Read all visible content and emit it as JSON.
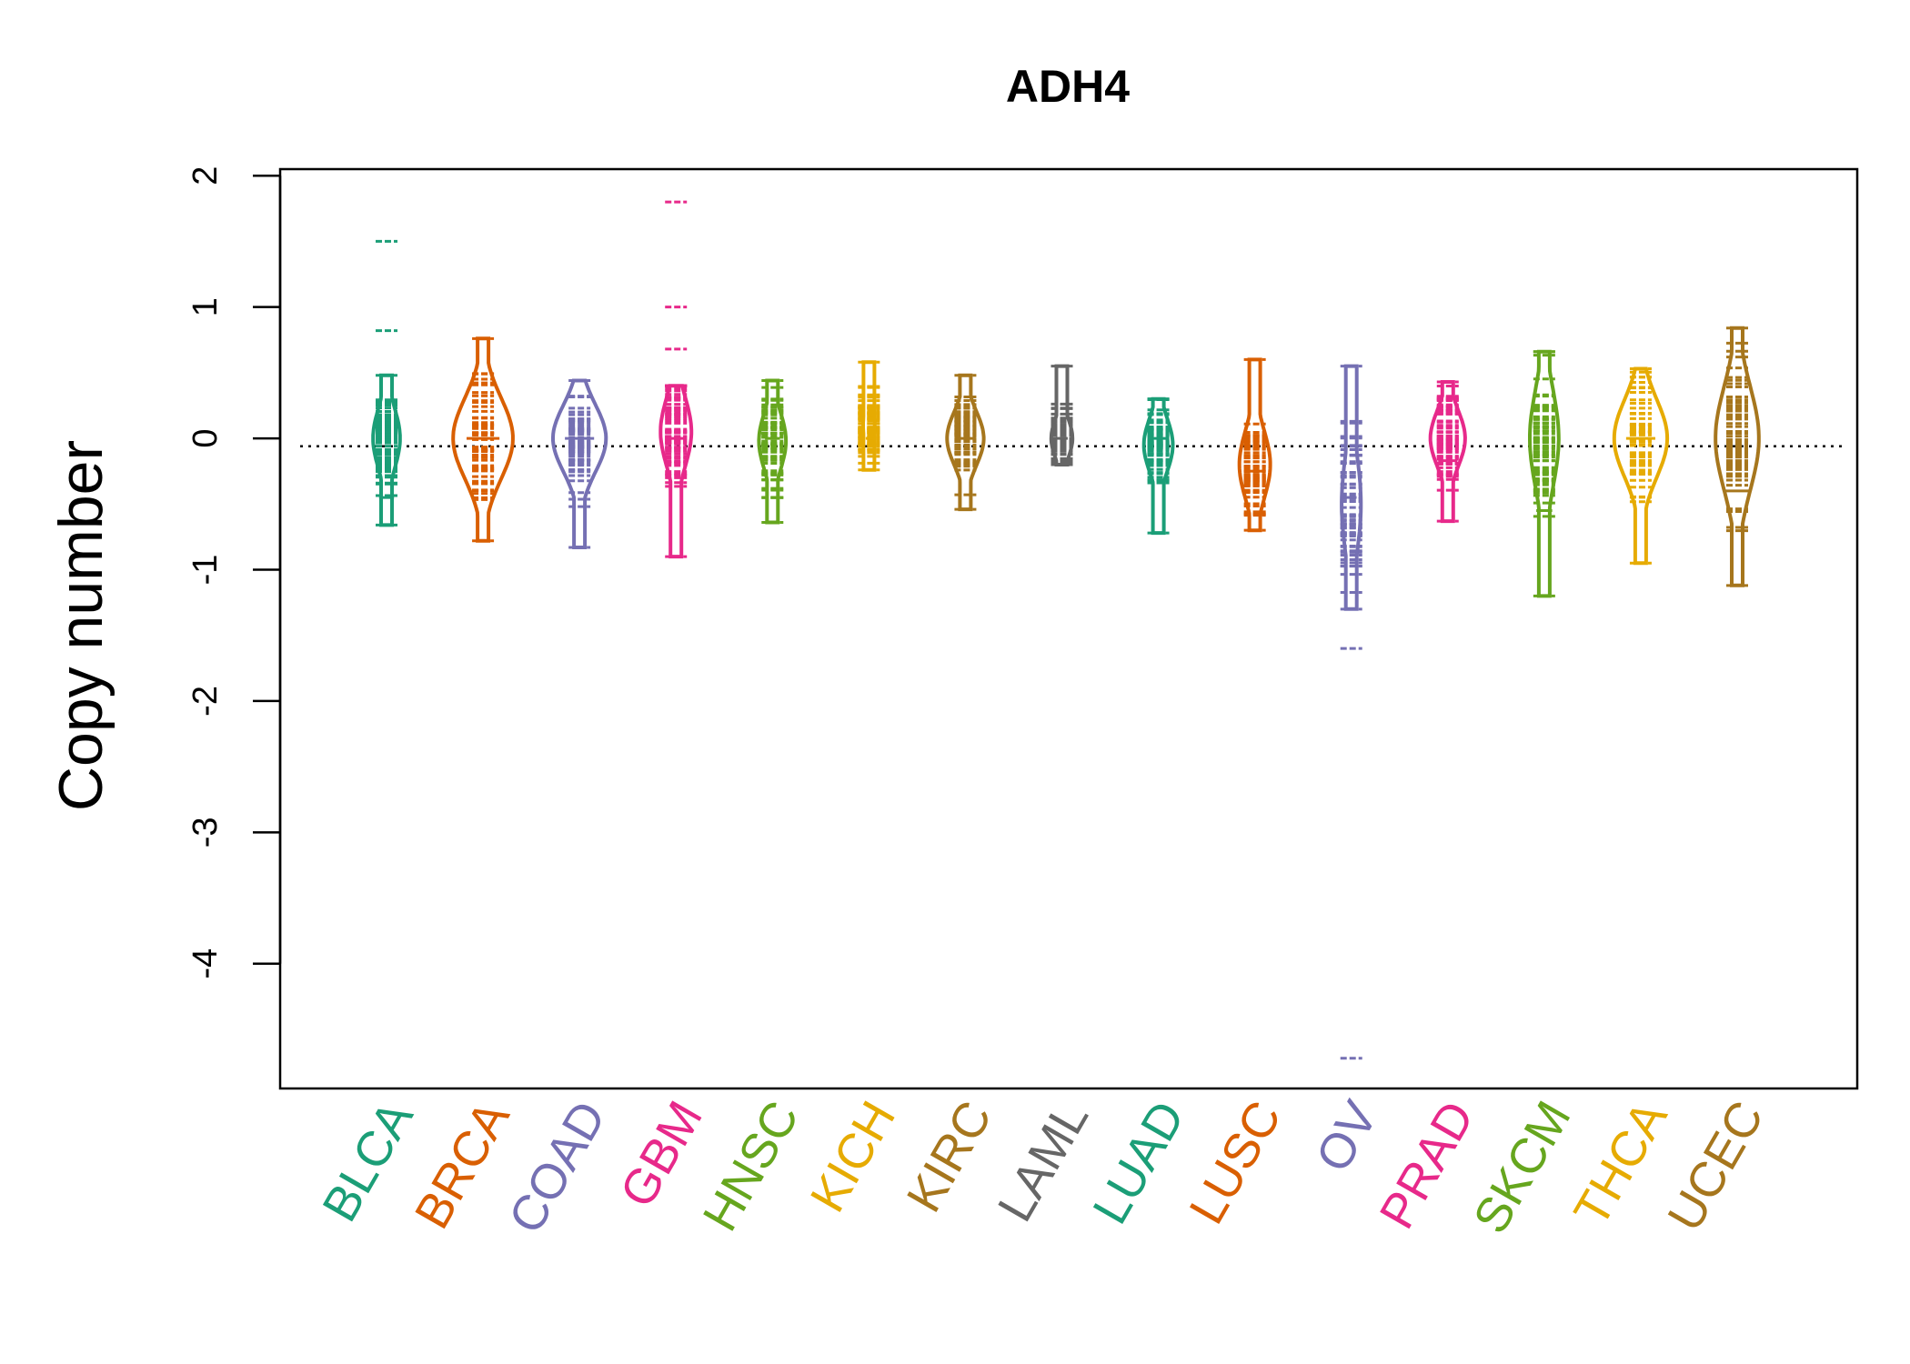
{
  "chart_data": {
    "type": "beanplot",
    "title": "ADH4",
    "xlabel": "",
    "ylabel": "Copy number",
    "ylim": [
      -4.95,
      2.05
    ],
    "yticks": [
      2,
      1,
      0,
      -1,
      -2,
      -3,
      -4
    ],
    "ytick_labels": [
      "2",
      "1",
      "0",
      "-1",
      "-2",
      "-3",
      "-4"
    ],
    "reference_line": -0.06,
    "categories": [
      "BLCA",
      "BRCA",
      "COAD",
      "GBM",
      "HNSC",
      "KICH",
      "KIRC",
      "LAML",
      "LUAD",
      "LUSC",
      "OV",
      "PRAD",
      "SKCM",
      "THCA",
      "UCEC"
    ],
    "colors": [
      "#1B9E77",
      "#D95F02",
      "#7570B3",
      "#E7298A",
      "#66A61E",
      "#E6AB02",
      "#A6761D",
      "#666666",
      "#1B9E77",
      "#D95F02",
      "#7570B3",
      "#E7298A",
      "#66A61E",
      "#E6AB02",
      "#A6761D"
    ],
    "series": [
      {
        "name": "BLCA",
        "min": -0.66,
        "max": 0.48,
        "outliers": [
          0.82,
          1.5
        ],
        "center": 0.0,
        "mean_line": -0.45,
        "density_width": 0.28
      },
      {
        "name": "BRCA",
        "min": -0.78,
        "max": 0.76,
        "outliers": [],
        "center": 0.0,
        "mean_line": 0.0,
        "density_width": 0.62
      },
      {
        "name": "COAD",
        "min": -0.83,
        "max": 0.44,
        "outliers": [],
        "center": 0.0,
        "mean_line": 0.0,
        "density_width": 0.55
      },
      {
        "name": "GBM",
        "min": -0.9,
        "max": 0.4,
        "outliers": [
          0.68,
          1.0,
          1.8
        ],
        "center": 0.05,
        "mean_line": 0.0,
        "density_width": 0.32
      },
      {
        "name": "HNSC",
        "min": -0.64,
        "max": 0.44,
        "outliers": [],
        "center": -0.02,
        "mean_line": 0.0,
        "density_width": 0.28
      },
      {
        "name": "KICH",
        "min": -0.24,
        "max": 0.58,
        "outliers": [],
        "center": 0.1,
        "mean_line": 0.0,
        "density_width": 0.12
      },
      {
        "name": "KIRC",
        "min": -0.54,
        "max": 0.48,
        "outliers": [],
        "center": 0.0,
        "mean_line": 0.0,
        "density_width": 0.38
      },
      {
        "name": "LAML",
        "min": -0.2,
        "max": 0.55,
        "outliers": [],
        "center": 0.0,
        "mean_line": 0.0,
        "density_width": 0.22
      },
      {
        "name": "LUAD",
        "min": -0.72,
        "max": 0.3,
        "outliers": [],
        "center": -0.05,
        "mean_line": 0.0,
        "density_width": 0.3
      },
      {
        "name": "LUSC",
        "min": -0.7,
        "max": 0.6,
        "outliers": [],
        "center": -0.2,
        "mean_line": -0.25,
        "density_width": 0.32
      },
      {
        "name": "OV",
        "min": -1.3,
        "max": 0.55,
        "outliers": [
          -1.6,
          -4.72
        ],
        "center": -0.5,
        "mean_line": -0.45,
        "density_width": 0.2
      },
      {
        "name": "PRAD",
        "min": -0.63,
        "max": 0.43,
        "outliers": [],
        "center": 0.0,
        "mean_line": -0.17,
        "density_width": 0.36
      },
      {
        "name": "SKCM",
        "min": -1.2,
        "max": 0.66,
        "outliers": [],
        "center": 0.0,
        "mean_line": -0.55,
        "density_width": 0.3
      },
      {
        "name": "THCA",
        "min": -0.95,
        "max": 0.53,
        "outliers": [],
        "center": 0.0,
        "mean_line": 0.0,
        "density_width": 0.55
      },
      {
        "name": "UCEC",
        "min": -1.12,
        "max": 0.84,
        "outliers": [],
        "center": 0.0,
        "mean_line": -0.4,
        "density_width": 0.45
      }
    ]
  }
}
